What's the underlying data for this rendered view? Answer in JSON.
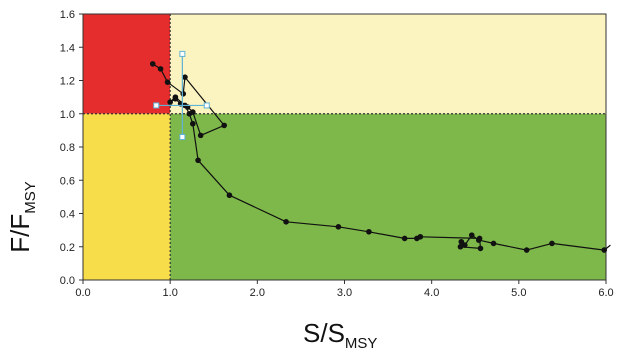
{
  "chart_data": {
    "type": "scatter",
    "xlabel_main": "S/S",
    "xlabel_sub": "MSY",
    "ylabel_main": "F/F",
    "ylabel_sub": "MSY",
    "xlim": [
      0,
      6
    ],
    "ylim": [
      0,
      1.6
    ],
    "x_ticks": [
      "0.0",
      "1.0",
      "2.0",
      "3.0",
      "4.0",
      "5.0",
      "6.0"
    ],
    "y_ticks": [
      "0.0",
      "0.2",
      "0.4",
      "0.6",
      "0.8",
      "1.0",
      "1.2",
      "1.4",
      "1.6"
    ],
    "reference_lines": {
      "x": 1.0,
      "y": 1.0,
      "style": "dashed"
    },
    "zones": [
      {
        "x": [
          0,
          1
        ],
        "y": [
          1,
          1.6
        ],
        "color": "#e52d2d"
      },
      {
        "x": [
          1,
          6
        ],
        "y": [
          1,
          1.6
        ],
        "color": "#fbf4c0"
      },
      {
        "x": [
          0,
          1
        ],
        "y": [
          0,
          1
        ],
        "color": "#f7dd49"
      },
      {
        "x": [
          1,
          6
        ],
        "y": [
          0,
          1
        ],
        "color": "#7eb84a"
      }
    ],
    "trajectory": {
      "color": "#111111",
      "points": [
        [
          6.05,
          0.21
        ],
        [
          5.98,
          0.18
        ],
        [
          5.38,
          0.22
        ],
        [
          5.09,
          0.18
        ],
        [
          4.71,
          0.22
        ],
        [
          4.54,
          0.24
        ],
        [
          4.46,
          0.27
        ],
        [
          4.38,
          0.21
        ],
        [
          4.34,
          0.23
        ],
        [
          4.33,
          0.2
        ],
        [
          4.56,
          0.19
        ],
        [
          4.55,
          0.25
        ],
        [
          3.87,
          0.26
        ],
        [
          3.83,
          0.25
        ],
        [
          3.69,
          0.25
        ],
        [
          3.28,
          0.29
        ],
        [
          2.93,
          0.32
        ],
        [
          2.33,
          0.35
        ],
        [
          1.68,
          0.51
        ],
        [
          1.32,
          0.72
        ],
        [
          1.26,
          0.94
        ],
        [
          1.22,
          1.0
        ],
        [
          1.17,
          1.05
        ],
        [
          1.06,
          1.1
        ],
        [
          1.0,
          1.07
        ],
        [
          1.06,
          1.09
        ],
        [
          1.12,
          1.06
        ],
        [
          1.2,
          1.04
        ],
        [
          1.26,
          1.01
        ],
        [
          1.35,
          0.87
        ],
        [
          1.62,
          0.93
        ],
        [
          1.17,
          1.22
        ],
        [
          1.15,
          1.12
        ],
        [
          0.97,
          1.19
        ],
        [
          0.89,
          1.27
        ],
        [
          0.8,
          1.3
        ]
      ]
    },
    "uncertainty": {
      "color": "#5fb3d6",
      "center": [
        1.14,
        1.05
      ],
      "x_range": [
        0.84,
        1.42
      ],
      "y_range": [
        0.86,
        1.36
      ]
    }
  }
}
